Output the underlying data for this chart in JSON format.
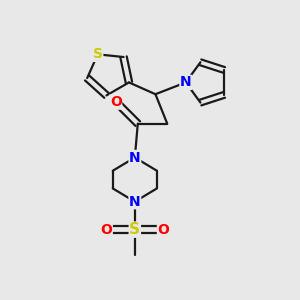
{
  "background_color": "#e8e8e8",
  "bond_color": "#1a1a1a",
  "bond_width": 1.6,
  "S_color": "#cccc00",
  "N_color": "#0000ff",
  "O_color": "#ff0000",
  "figsize": [
    3.0,
    3.0
  ],
  "dpi": 100,
  "xlim": [
    0.0,
    1.0
  ],
  "ylim": [
    0.0,
    1.0
  ]
}
